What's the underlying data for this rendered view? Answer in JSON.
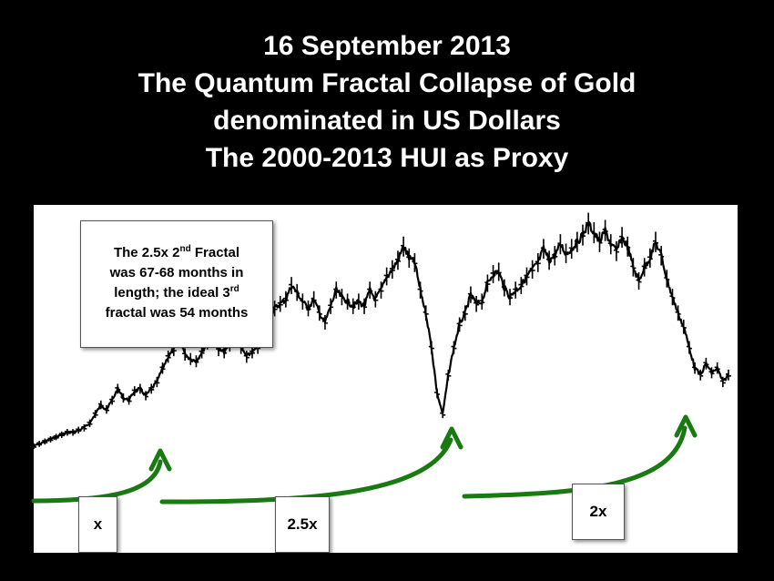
{
  "title_lines": [
    "16 September 2013",
    "The Quantum Fractal Collapse of Gold",
    "denominated in US Dollars",
    "The 2000-2013 HUI as Proxy"
  ],
  "note": {
    "line1": "The 2.5x 2",
    "sup1": "nd",
    "line1_end": " Fractal",
    "line2": "was 67-68 months in",
    "line3": "length; the ideal 3",
    "sup3": "rd",
    "line4": "fractal was 54 months"
  },
  "fractal_labels": [
    "x",
    "2.5x",
    "2x"
  ],
  "colors": {
    "background": "#000000",
    "panel": "#ffffff",
    "price": "#000000",
    "arrow": "#1a7a12"
  },
  "chart_data": {
    "type": "line",
    "title": "",
    "xlabel": "",
    "ylabel": "",
    "series": [
      {
        "values": [
          0.02,
          0.03,
          0.04,
          0.05,
          0.06,
          0.07,
          0.08,
          0.08,
          0.09,
          0.1,
          0.12,
          0.16,
          0.2,
          0.18,
          0.22,
          0.27,
          0.23,
          0.22,
          0.26,
          0.27,
          0.24,
          0.27,
          0.3,
          0.36,
          0.41,
          0.44,
          0.5,
          0.42,
          0.4,
          0.39,
          0.43,
          0.47,
          0.49,
          0.44,
          0.43,
          0.46,
          0.5,
          0.45,
          0.41,
          0.43,
          0.45,
          0.53,
          0.58,
          0.62,
          0.64,
          0.66,
          0.72,
          0.69,
          0.65,
          0.62,
          0.66,
          0.6,
          0.56,
          0.63,
          0.7,
          0.67,
          0.65,
          0.63,
          0.65,
          0.63,
          0.7,
          0.66,
          0.7,
          0.76,
          0.79,
          0.83,
          0.89,
          0.84,
          0.82,
          0.7,
          0.6,
          0.45,
          0.25,
          0.16,
          0.33,
          0.45,
          0.55,
          0.6,
          0.68,
          0.64,
          0.65,
          0.73,
          0.77,
          0.78,
          0.71,
          0.67,
          0.7,
          0.72,
          0.76,
          0.79,
          0.82,
          0.88,
          0.83,
          0.85,
          0.9,
          0.86,
          0.88,
          0.91,
          0.94,
          0.99,
          0.95,
          0.91,
          0.96,
          0.9,
          0.87,
          0.93,
          0.89,
          0.8,
          0.74,
          0.8,
          0.84,
          0.91,
          0.85,
          0.75,
          0.67,
          0.6,
          0.54,
          0.45,
          0.36,
          0.33,
          0.38,
          0.34,
          0.36,
          0.3,
          0.33
        ],
        "ylim": [
          0,
          1
        ]
      }
    ],
    "grid": false,
    "legend": "none"
  }
}
